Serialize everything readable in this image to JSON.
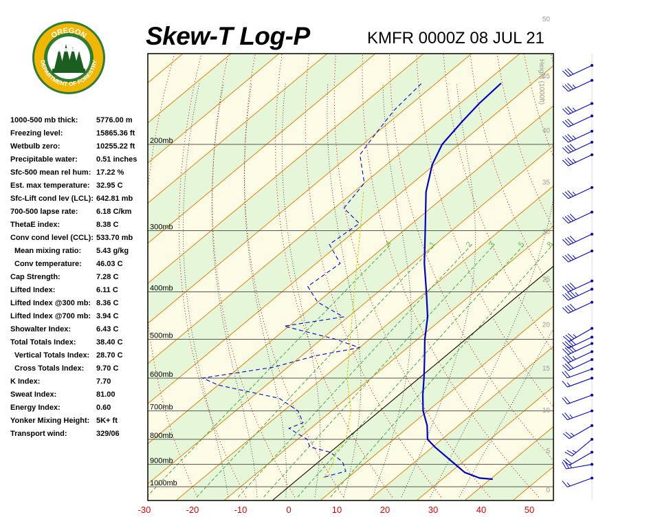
{
  "header": {
    "title": "Skew-T Log-P",
    "station": "KMFR 0000Z 08 JUL 21"
  },
  "logo": {
    "text_top": "OREGON",
    "text_bottom": "DEPARTMENT OF FORESTRY",
    "colors": {
      "ring": "#2e7d32",
      "gold": "#f2b705",
      "tree": "#1b5e20",
      "sky": "#ffffff"
    }
  },
  "indices": [
    {
      "label": "1000-500 mb thick:",
      "value": "5776.00 m",
      "sub": false
    },
    {
      "label": "Freezing level:",
      "value": "15865.36 ft",
      "sub": false
    },
    {
      "label": "Wetbulb zero:",
      "value": "10255.22 ft",
      "sub": false
    },
    {
      "label": "Precipitable water:",
      "value": "0.51 inches",
      "sub": false
    },
    {
      "label": "Sfc-500 mean rel hum:",
      "value": "17.22 %",
      "sub": false
    },
    {
      "label": "Est. max temperature:",
      "value": "32.95 C",
      "sub": false
    },
    {
      "label": "Sfc-Lift cond lev (LCL):",
      "value": "642.81 mb",
      "sub": false
    },
    {
      "label": "700-500 lapse rate:",
      "value": "6.18 C/km",
      "sub": false
    },
    {
      "label": "ThetaE index:",
      "value": "8.38 C",
      "sub": false
    },
    {
      "label": "Conv cond level (CCL):",
      "value": "533.70 mb",
      "sub": false
    },
    {
      "label": "Mean mixing ratio:",
      "value": "5.43 g/kg",
      "sub": true
    },
    {
      "label": "Conv temperature:",
      "value": "46.03 C",
      "sub": true
    },
    {
      "label": "Cap Strength:",
      "value": "7.28 C",
      "sub": false
    },
    {
      "label": "Lifted Index:",
      "value": "6.11 C",
      "sub": false
    },
    {
      "label": "Lifted Index @300 mb:",
      "value": "8.36 C",
      "sub": false
    },
    {
      "label": "Lifted Index @700 mb:",
      "value": "3.94 C",
      "sub": false
    },
    {
      "label": "Showalter Index:",
      "value": "6.43 C",
      "sub": false
    },
    {
      "label": "Total Totals Index:",
      "value": "38.40 C",
      "sub": false
    },
    {
      "label": "Vertical Totals Index:",
      "value": "28.70 C",
      "sub": true
    },
    {
      "label": "Cross Totals Index:",
      "value": "9.70 C",
      "sub": true
    },
    {
      "label": "K Index:",
      "value": "7.70",
      "sub": false
    },
    {
      "label": "Sweat Index:",
      "value": "81.00",
      "sub": false
    },
    {
      "label": "Energy Index:",
      "value": "0.60",
      "sub": false
    },
    {
      "label": "Yonker Mixing Height:",
      "value": "5K+ ft",
      "sub": false
    },
    {
      "label": "Transport wind:",
      "value": "329/06",
      "sub": false
    }
  ],
  "chart_data": {
    "type": "line",
    "title": "Skew-T Log-P",
    "x_ticks": [
      "-30",
      "-20",
      "-10",
      "0",
      "10",
      "20",
      "30",
      "40",
      "50"
    ],
    "x_tick_values": [
      -30,
      -20,
      -10,
      0,
      10,
      20,
      30,
      40,
      50
    ],
    "pressure_levels": [
      {
        "p": 1000,
        "label": "1000mb"
      },
      {
        "p": 900,
        "label": "900mb"
      },
      {
        "p": 800,
        "label": "800mb"
      },
      {
        "p": 700,
        "label": "700mb"
      },
      {
        "p": 600,
        "label": "600mb"
      },
      {
        "p": 500,
        "label": "500mb"
      },
      {
        "p": 400,
        "label": "400mb"
      },
      {
        "p": 300,
        "label": "300mb"
      },
      {
        "p": 200,
        "label": "200mb"
      }
    ],
    "height_axis": {
      "label": "Height (1000ft)",
      "ticks": [
        {
          "kft": 0,
          "label": "0"
        },
        {
          "kft": 5,
          "label": "5"
        },
        {
          "kft": 10,
          "label": "10"
        },
        {
          "kft": 15,
          "label": "15"
        },
        {
          "kft": 20,
          "label": "20"
        },
        {
          "kft": 25,
          "label": "25"
        },
        {
          "kft": 30,
          "label": "30"
        },
        {
          "kft": 35,
          "label": "35"
        },
        {
          "kft": 40,
          "label": "40"
        },
        {
          "kft": 45,
          "label": "45"
        },
        {
          "kft": 50,
          "label": "50"
        }
      ]
    },
    "mixing_ratio_labels": [
      {
        "w": 0.4,
        "label": ".4"
      },
      {
        "w": 1,
        "label": "1"
      },
      {
        "w": 2,
        "label": "2"
      },
      {
        "w": 3,
        "label": "3"
      },
      {
        "w": 5,
        "label": "5"
      },
      {
        "w": 8,
        "label": "8"
      }
    ],
    "series": [
      {
        "name": "",
        "role": "temperature",
        "color": "#0000cc",
        "points": [
          {
            "p": 965,
            "t": 40.5
          },
          {
            "p": 960,
            "t": 37.5
          },
          {
            "p": 935,
            "t": 33.0
          },
          {
            "p": 900,
            "t": 29.0
          },
          {
            "p": 850,
            "t": 23.0
          },
          {
            "p": 830,
            "t": 20.5
          },
          {
            "p": 800,
            "t": 17.0
          },
          {
            "p": 750,
            "t": 13.5
          },
          {
            "p": 700,
            "t": 9.0
          },
          {
            "p": 650,
            "t": 5.0
          },
          {
            "p": 600,
            "t": 1.0
          },
          {
            "p": 550,
            "t": -3.5
          },
          {
            "p": 500,
            "t": -8.5
          },
          {
            "p": 450,
            "t": -13.5
          },
          {
            "p": 400,
            "t": -20.0
          },
          {
            "p": 350,
            "t": -27.5
          },
          {
            "p": 300,
            "t": -35.5
          },
          {
            "p": 250,
            "t": -45.0
          },
          {
            "p": 220,
            "t": -50.5
          },
          {
            "p": 200,
            "t": -53.5
          },
          {
            "p": 180,
            "t": -55.0
          },
          {
            "p": 165,
            "t": -56.0
          },
          {
            "p": 150,
            "t": -56.5
          }
        ]
      },
      {
        "name": "",
        "role": "dewpoint",
        "color": "#0000cc",
        "dashed": true,
        "points": [
          {
            "p": 955,
            "t": 5.0
          },
          {
            "p": 930,
            "t": 8.0
          },
          {
            "p": 890,
            "t": 5.0
          },
          {
            "p": 850,
            "t": 0.0
          },
          {
            "p": 830,
            "t": -5.5
          },
          {
            "p": 800,
            "t": -8.0
          },
          {
            "p": 760,
            "t": -14.5
          },
          {
            "p": 740,
            "t": -13.0
          },
          {
            "p": 700,
            "t": -17.0
          },
          {
            "p": 660,
            "t": -24.0
          },
          {
            "p": 620,
            "t": -40.0
          },
          {
            "p": 600,
            "t": -45.0
          },
          {
            "p": 570,
            "t": -33.0
          },
          {
            "p": 540,
            "t": -27.0
          },
          {
            "p": 520,
            "t": -20.0
          },
          {
            "p": 500,
            "t": -27.0
          },
          {
            "p": 470,
            "t": -41.0
          },
          {
            "p": 450,
            "t": -31.0
          },
          {
            "p": 420,
            "t": -40.0
          },
          {
            "p": 390,
            "t": -46.0
          },
          {
            "p": 350,
            "t": -45.0
          },
          {
            "p": 320,
            "t": -52.0
          },
          {
            "p": 290,
            "t": -51.0
          },
          {
            "p": 270,
            "t": -58.0
          },
          {
            "p": 240,
            "t": -60.0
          },
          {
            "p": 210,
            "t": -68.0
          },
          {
            "p": 190,
            "t": -70.0
          },
          {
            "p": 170,
            "t": -72.0
          },
          {
            "p": 150,
            "t": -73.0
          }
        ]
      },
      {
        "name": "",
        "role": "parcel",
        "color": "#cccc00",
        "dashed": true,
        "points": [
          {
            "p": 960,
            "t": 5.0
          },
          {
            "p": 900,
            "t": 3.5
          },
          {
            "p": 850,
            "t": 1.0
          },
          {
            "p": 800,
            "t": 0.0
          },
          {
            "p": 700,
            "t": -6.0
          },
          {
            "p": 600,
            "t": -15.0
          },
          {
            "p": 500,
            "t": -24.0
          },
          {
            "p": 400,
            "t": -35.0
          },
          {
            "p": 300,
            "t": -49.0
          },
          {
            "p": 250,
            "t": -58.0
          }
        ]
      }
    ],
    "wind_barbs": [
      {
        "p": 960,
        "dir": 250,
        "spd": 15
      },
      {
        "p": 900,
        "dir": 260,
        "spd": 25
      },
      {
        "p": 850,
        "dir": 240,
        "spd": 20
      },
      {
        "p": 800,
        "dir": 230,
        "spd": 25
      },
      {
        "p": 750,
        "dir": 240,
        "spd": 25
      },
      {
        "p": 700,
        "dir": 250,
        "spd": 25
      },
      {
        "p": 650,
        "dir": 250,
        "spd": 20
      },
      {
        "p": 600,
        "dir": 250,
        "spd": 15
      },
      {
        "p": 575,
        "dir": 250,
        "spd": 20
      },
      {
        "p": 550,
        "dir": 245,
        "spd": 30
      },
      {
        "p": 530,
        "dir": 245,
        "spd": 35
      },
      {
        "p": 510,
        "dir": 245,
        "spd": 40
      },
      {
        "p": 495,
        "dir": 245,
        "spd": 40
      },
      {
        "p": 475,
        "dir": 240,
        "spd": 35
      },
      {
        "p": 420,
        "dir": 245,
        "spd": 40
      },
      {
        "p": 395,
        "dir": 245,
        "spd": 45
      },
      {
        "p": 380,
        "dir": 245,
        "spd": 40
      },
      {
        "p": 330,
        "dir": 245,
        "spd": 35
      },
      {
        "p": 305,
        "dir": 245,
        "spd": 40
      },
      {
        "p": 275,
        "dir": 245,
        "spd": 40
      },
      {
        "p": 245,
        "dir": 245,
        "spd": 35
      },
      {
        "p": 210,
        "dir": 245,
        "spd": 35
      },
      {
        "p": 198,
        "dir": 245,
        "spd": 40
      },
      {
        "p": 188,
        "dir": 245,
        "spd": 35
      },
      {
        "p": 175,
        "dir": 245,
        "spd": 30
      },
      {
        "p": 165,
        "dir": 245,
        "spd": 35
      },
      {
        "p": 148,
        "dir": 245,
        "spd": 35
      },
      {
        "p": 138,
        "dir": 245,
        "spd": 30
      }
    ]
  }
}
